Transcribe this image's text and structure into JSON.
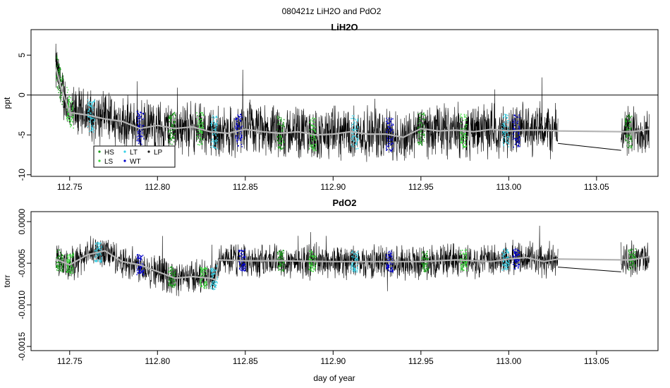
{
  "figure_title": "080421z   LiH2O and PdO2",
  "xlabel": "day of year",
  "chart_data": [
    {
      "type": "line",
      "title": "LiH2O",
      "ylabel": "ppt",
      "xlim": [
        112.728,
        113.085
      ],
      "ylim": [
        -10.2,
        8.2
      ],
      "x_ticks": [
        112.75,
        112.8,
        112.85,
        112.9,
        112.95,
        113.0,
        113.05
      ],
      "x_tick_labels": [
        "112.75",
        "112.80",
        "112.85",
        "112.90",
        "112.95",
        "113.00",
        "113.05"
      ],
      "y_ticks": [
        5,
        0,
        -5,
        -10
      ],
      "y_tick_labels": [
        "5",
        "0",
        "-5",
        "-10"
      ],
      "reference_line": 0,
      "series": [
        {
          "name": "raw",
          "color": "#000000",
          "style": "line",
          "segments": [
            [
              112.742,
              113.028
            ],
            [
              113.064,
              113.08
            ]
          ]
        },
        {
          "name": "smoothed",
          "color": "#b4b4b4",
          "style": "line",
          "x": [
            112.742,
            112.745,
            112.75,
            112.76,
            112.77,
            112.78,
            112.79,
            112.8,
            112.81,
            112.82,
            112.83,
            112.84,
            112.85,
            112.86,
            112.87,
            112.88,
            112.89,
            112.9,
            112.91,
            112.92,
            112.93,
            112.94,
            112.95,
            112.96,
            112.97,
            112.98,
            112.99,
            113.0,
            113.01,
            113.02,
            113.028,
            113.064,
            113.07,
            113.08
          ],
          "y": [
            3.5,
            1.0,
            -2.2,
            -2.5,
            -3.0,
            -3.3,
            -4.2,
            -3.8,
            -4.2,
            -4.0,
            -4.6,
            -4.8,
            -4.3,
            -4.6,
            -4.8,
            -4.6,
            -5.0,
            -4.9,
            -4.6,
            -4.9,
            -4.9,
            -5.3,
            -4.2,
            -4.5,
            -4.4,
            -4.6,
            -4.3,
            -4.5,
            -4.4,
            -4.4,
            -4.5,
            -4.6,
            -4.6,
            -4.3
          ]
        }
      ],
      "legend": {
        "placement": "bottom-left",
        "entries": [
          {
            "label": "HS",
            "color": "#1a9a1a"
          },
          {
            "label": "LT",
            "color": "#35d0e6"
          },
          {
            "label": "LP",
            "color": "#1a1a1a"
          },
          {
            "label": "LS",
            "color": "#3ad83a"
          },
          {
            "label": "WT",
            "color": "#0000cc"
          }
        ]
      },
      "flag_colors": [
        "#1a9a1a",
        "#3ad83a",
        "#35d0e6",
        "#0000cc"
      ]
    },
    {
      "type": "line",
      "title": "PdO2",
      "ylabel": "torr",
      "xlim": [
        112.728,
        113.085
      ],
      "ylim": [
        -0.00155,
        0.00012
      ],
      "x_ticks": [
        112.75,
        112.8,
        112.85,
        112.9,
        112.95,
        113.0,
        113.05
      ],
      "x_tick_labels": [
        "112.75",
        "112.80",
        "112.85",
        "112.90",
        "112.95",
        "113.00",
        "113.05"
      ],
      "y_ticks": [
        0.0,
        -0.0005,
        -0.001,
        -0.0015
      ],
      "y_tick_labels": [
        "0.0000",
        "-0.0005",
        "-0.0010",
        "-0.0015"
      ],
      "series": [
        {
          "name": "raw",
          "color": "#000000",
          "style": "line",
          "segments": [
            [
              112.742,
              113.028
            ],
            [
              113.064,
              113.08
            ]
          ]
        },
        {
          "name": "smoothed",
          "color": "#b4b4b4",
          "style": "line",
          "x": [
            112.742,
            112.75,
            112.76,
            112.77,
            112.78,
            112.79,
            112.8,
            112.81,
            112.82,
            112.83,
            112.833,
            112.835,
            112.85,
            112.87,
            112.9,
            112.93,
            112.95,
            112.97,
            112.99,
            113.0,
            113.01,
            113.02,
            113.028,
            113.064,
            113.07,
            113.08
          ],
          "y": [
            -0.00045,
            -0.00052,
            -0.0004,
            -0.00035,
            -0.00048,
            -0.00052,
            -0.0006,
            -0.00068,
            -0.00066,
            -0.00068,
            -0.0007,
            -0.00046,
            -0.00047,
            -0.00047,
            -0.00048,
            -0.00048,
            -0.00048,
            -0.00046,
            -0.00048,
            -0.00045,
            -0.00043,
            -0.00048,
            -0.00045,
            -0.00046,
            -0.00046,
            -0.00042
          ]
        }
      ],
      "flag_colors": [
        "#1a9a1a",
        "#3ad83a",
        "#35d0e6",
        "#0000cc"
      ]
    }
  ]
}
